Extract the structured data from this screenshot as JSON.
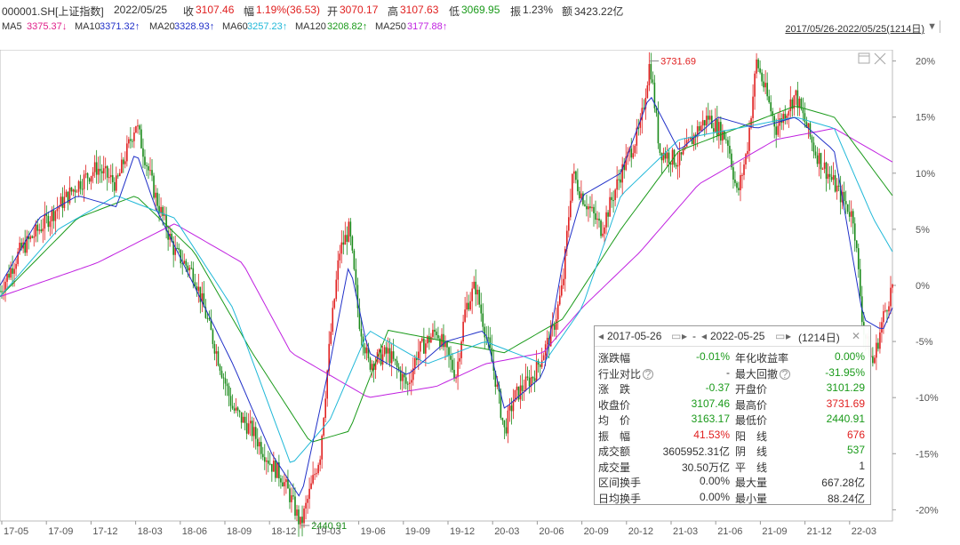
{
  "header": {
    "code": "000001.SH[上证指数]",
    "date": "2022/05/25",
    "close_label": "收",
    "close": "3107.46",
    "change_label": "幅",
    "change": "1.19%(36.53)",
    "open_label": "开",
    "open": "3070.17",
    "high_label": "高",
    "high": "3107.63",
    "low_label": "低",
    "low": "3069.95",
    "amp_label": "振",
    "amp": "1.23%",
    "amount_label": "额",
    "amount": "3423.22亿"
  },
  "ma": [
    {
      "label": "MA5",
      "value": "3375.37↓",
      "color": "#e0208a"
    },
    {
      "label": "MA10",
      "value": "3371.32↑",
      "color": "#2030c8"
    },
    {
      "label": "MA20",
      "value": "3328.93↑",
      "color": "#2030c8"
    },
    {
      "label": "MA60",
      "value": "3257.23↑",
      "color": "#20b8d8"
    },
    {
      "label": "MA120",
      "value": "3208.82↑",
      "color": "#1a9a1a"
    },
    {
      "label": "MA250",
      "value": "3177.88↑",
      "color": "#c020e0"
    }
  ],
  "range_text": "2017/05/26-2022/05/25(1214日)",
  "range_icon": "triangle-down-icon",
  "chart_data": {
    "type": "candlestick-percent",
    "y_ticks": [
      "20%",
      "15%",
      "10%",
      "5%",
      "0%",
      "-5%",
      "-10%",
      "-15%",
      "-20%"
    ],
    "ylim": [
      -21,
      21
    ],
    "x_ticks": [
      "17-05",
      "17-09",
      "17-12",
      "18-03",
      "18-06",
      "18-09",
      "18-12",
      "19-03",
      "19-06",
      "19-09",
      "19-12",
      "20-03",
      "20-06",
      "20-09",
      "20-12",
      "21-03",
      "21-06",
      "21-09",
      "21-12",
      "22-03"
    ],
    "high_label": "3731.69",
    "low_label": "2440.91",
    "high_value_pct": 20.0,
    "low_value_pct": -21.4,
    "price_path_pct": [
      [
        0,
        -0.5
      ],
      [
        2,
        3
      ],
      [
        5,
        6
      ],
      [
        8,
        9
      ],
      [
        10,
        10.5
      ],
      [
        12,
        9
      ],
      [
        14,
        14.5
      ],
      [
        16,
        8
      ],
      [
        18,
        3
      ],
      [
        20,
        1
      ],
      [
        22,
        -5
      ],
      [
        24,
        -11
      ],
      [
        26,
        -13
      ],
      [
        28,
        -16
      ],
      [
        29,
        -17
      ],
      [
        30,
        -19
      ],
      [
        31,
        -21.4
      ],
      [
        33,
        -15
      ],
      [
        34,
        -5
      ],
      [
        35,
        3
      ],
      [
        36,
        5
      ],
      [
        37,
        -3
      ],
      [
        38,
        -7
      ],
      [
        40,
        -6
      ],
      [
        42,
        -9
      ],
      [
        43,
        -6
      ],
      [
        45,
        -4
      ],
      [
        47,
        -8
      ],
      [
        48,
        -2
      ],
      [
        49,
        0
      ],
      [
        50,
        -4
      ],
      [
        51,
        -8
      ],
      [
        52,
        -13
      ],
      [
        53,
        -10
      ],
      [
        55,
        -8
      ],
      [
        57,
        -4
      ],
      [
        58,
        0
      ],
      [
        59,
        10
      ],
      [
        60,
        8
      ],
      [
        62,
        5
      ],
      [
        64,
        10
      ],
      [
        66,
        14
      ],
      [
        67,
        20
      ],
      [
        68,
        12
      ],
      [
        70,
        11
      ],
      [
        72,
        14
      ],
      [
        73,
        15
      ],
      [
        75,
        13
      ],
      [
        76,
        8
      ],
      [
        77,
        12
      ],
      [
        78,
        20
      ],
      [
        80,
        14
      ],
      [
        82,
        17
      ],
      [
        84,
        12
      ],
      [
        86,
        9
      ],
      [
        88,
        6
      ],
      [
        89,
        -4
      ],
      [
        90,
        -7
      ],
      [
        91,
        -3
      ],
      [
        92,
        0
      ]
    ],
    "ma_series": [
      {
        "label": "MA250",
        "color": "#c020e0",
        "path": [
          [
            0,
            -1
          ],
          [
            10,
            2
          ],
          [
            18,
            5.5
          ],
          [
            25,
            2
          ],
          [
            30,
            -6
          ],
          [
            38,
            -10
          ],
          [
            45,
            -9
          ],
          [
            50,
            -7
          ],
          [
            56,
            -6
          ],
          [
            60,
            -2
          ],
          [
            66,
            3
          ],
          [
            72,
            9
          ],
          [
            80,
            13
          ],
          [
            86,
            14
          ],
          [
            92,
            11
          ]
        ]
      },
      {
        "label": "MA120",
        "color": "#1a9a1a",
        "path": [
          [
            0,
            -1
          ],
          [
            8,
            6
          ],
          [
            14,
            8
          ],
          [
            20,
            3
          ],
          [
            26,
            -6
          ],
          [
            32,
            -14
          ],
          [
            36,
            -13
          ],
          [
            40,
            -4
          ],
          [
            46,
            -5
          ],
          [
            52,
            -6
          ],
          [
            58,
            -3
          ],
          [
            64,
            5
          ],
          [
            70,
            12
          ],
          [
            76,
            14
          ],
          [
            82,
            16
          ],
          [
            86,
            15
          ],
          [
            92,
            8
          ]
        ]
      },
      {
        "label": "MA60",
        "color": "#20b8d8",
        "path": [
          [
            0,
            -1
          ],
          [
            6,
            5
          ],
          [
            12,
            8
          ],
          [
            18,
            6
          ],
          [
            24,
            -2
          ],
          [
            30,
            -16
          ],
          [
            34,
            -12
          ],
          [
            38,
            -4
          ],
          [
            44,
            -7
          ],
          [
            50,
            -5
          ],
          [
            56,
            -7
          ],
          [
            60,
            -2
          ],
          [
            64,
            8
          ],
          [
            70,
            13
          ],
          [
            76,
            14
          ],
          [
            82,
            15
          ],
          [
            86,
            14
          ],
          [
            90,
            6
          ],
          [
            92,
            3
          ]
        ]
      },
      {
        "label": "MA20",
        "color": "#2030c8",
        "path": [
          [
            0,
            0
          ],
          [
            4,
            6
          ],
          [
            8,
            8
          ],
          [
            12,
            7
          ],
          [
            14,
            12
          ],
          [
            16,
            7
          ],
          [
            20,
            0
          ],
          [
            24,
            -7
          ],
          [
            28,
            -15
          ],
          [
            31,
            -19
          ],
          [
            34,
            -7
          ],
          [
            36,
            2
          ],
          [
            38,
            -6
          ],
          [
            42,
            -8
          ],
          [
            46,
            -5
          ],
          [
            50,
            -4
          ],
          [
            52,
            -11
          ],
          [
            56,
            -8
          ],
          [
            58,
            2
          ],
          [
            60,
            8
          ],
          [
            64,
            10
          ],
          [
            67,
            17
          ],
          [
            70,
            12
          ],
          [
            74,
            15
          ],
          [
            78,
            14
          ],
          [
            82,
            15
          ],
          [
            86,
            12
          ],
          [
            89,
            -3
          ],
          [
            91,
            -4
          ],
          [
            92,
            -2
          ]
        ]
      }
    ]
  },
  "chart_icons": {
    "maximize": "maximize-icon",
    "close": "close-icon"
  },
  "popup": {
    "start_date": "2017-05-26",
    "sep": "-",
    "end_date": "2022-05-25",
    "days": "(1214日)",
    "rows": [
      {
        "l1": "涨跌幅",
        "v1": "-0.01%",
        "v1c": "green",
        "l2": "年化收益率",
        "v2": "0.00%",
        "v2c": "green"
      },
      {
        "l1": "行业对比",
        "help1": "?",
        "v1": "-",
        "v1c": "",
        "l2": "最大回撤",
        "help2": "?",
        "v2": "-31.95%",
        "v2c": "green"
      },
      {
        "l1": "涨　跌",
        "v1": "-0.37",
        "v1c": "green",
        "l2": "开盘价",
        "v2": "3101.29",
        "v2c": "green"
      },
      {
        "l1": "收盘价",
        "v1": "3107.46",
        "v1c": "green",
        "l2": "最高价",
        "v2": "3731.69",
        "v2c": "red"
      },
      {
        "l1": "均　价",
        "v1": "3163.17",
        "v1c": "green",
        "l2": "最低价",
        "v2": "2440.91",
        "v2c": "green"
      },
      {
        "l1": "振　幅",
        "v1": "41.53%",
        "v1c": "red",
        "l2": "阳　线",
        "v2": "676",
        "v2c": "red"
      },
      {
        "l1": "成交额",
        "v1": "3605952.31亿",
        "v1c": "",
        "l2": "阴　线",
        "v2": "537",
        "v2c": "green"
      },
      {
        "l1": "成交量",
        "v1": "30.50万亿",
        "v1c": "",
        "l2": "平　线",
        "v2": "1",
        "v2c": ""
      },
      {
        "l1": "区间换手",
        "v1": "0.00%",
        "v1c": "",
        "l2": "最大量",
        "v2": "667.28亿",
        "v2c": ""
      },
      {
        "l1": "日均换手",
        "v1": "0.00%",
        "v1c": "",
        "l2": "最小量",
        "v2": "88.24亿",
        "v2c": ""
      }
    ]
  }
}
